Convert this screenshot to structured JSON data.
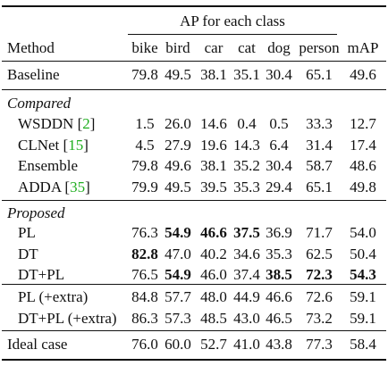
{
  "header": {
    "group_title": "AP for each class",
    "method_label": "Method",
    "columns": [
      "bike",
      "bird",
      "car",
      "cat",
      "dog",
      "person",
      "mAP"
    ]
  },
  "baseline": {
    "name": "Baseline",
    "values": [
      "79.8",
      "49.5",
      "38.1",
      "35.1",
      "30.4",
      "65.1",
      "49.6"
    ]
  },
  "compared": {
    "label": "Compared",
    "rows": [
      {
        "name": "WSDDN",
        "cite": "2",
        "values": [
          "1.5",
          "26.0",
          "14.6",
          "0.4",
          "0.5",
          "33.3",
          "12.7"
        ]
      },
      {
        "name": "CLNet",
        "cite": "15",
        "values": [
          "4.5",
          "27.9",
          "19.6",
          "14.3",
          "6.4",
          "31.4",
          "17.4"
        ]
      },
      {
        "name": "Ensemble",
        "cite": "",
        "values": [
          "79.8",
          "49.6",
          "38.1",
          "35.2",
          "30.4",
          "58.7",
          "48.6"
        ]
      },
      {
        "name": "ADDA",
        "cite": "35",
        "values": [
          "79.9",
          "49.5",
          "39.5",
          "35.3",
          "29.4",
          "65.1",
          "49.8"
        ]
      }
    ]
  },
  "proposed": {
    "label": "Proposed",
    "rows": [
      {
        "name": "PL",
        "values": [
          "76.3",
          "54.9",
          "46.6",
          "37.5",
          "36.9",
          "71.7",
          "54.0"
        ],
        "bold": [
          false,
          true,
          true,
          true,
          false,
          false,
          false
        ]
      },
      {
        "name": "DT",
        "values": [
          "82.8",
          "47.0",
          "40.2",
          "34.6",
          "35.3",
          "62.5",
          "50.4"
        ],
        "bold": [
          true,
          false,
          false,
          false,
          false,
          false,
          false
        ]
      },
      {
        "name": "DT+PL",
        "values": [
          "76.5",
          "54.9",
          "46.0",
          "37.4",
          "38.5",
          "72.3",
          "54.3"
        ],
        "bold": [
          false,
          true,
          false,
          false,
          true,
          true,
          true
        ]
      }
    ]
  },
  "extra": {
    "rows": [
      {
        "name": "PL (+extra)",
        "values": [
          "84.8",
          "57.7",
          "48.0",
          "44.9",
          "46.6",
          "72.6",
          "59.1"
        ]
      },
      {
        "name": "DT+PL (+extra)",
        "values": [
          "86.3",
          "57.3",
          "48.5",
          "43.0",
          "46.5",
          "73.2",
          "59.1"
        ]
      }
    ]
  },
  "ideal": {
    "name": "Ideal case",
    "values": [
      "76.0",
      "60.0",
      "52.7",
      "41.0",
      "43.8",
      "77.3",
      "58.4"
    ]
  }
}
